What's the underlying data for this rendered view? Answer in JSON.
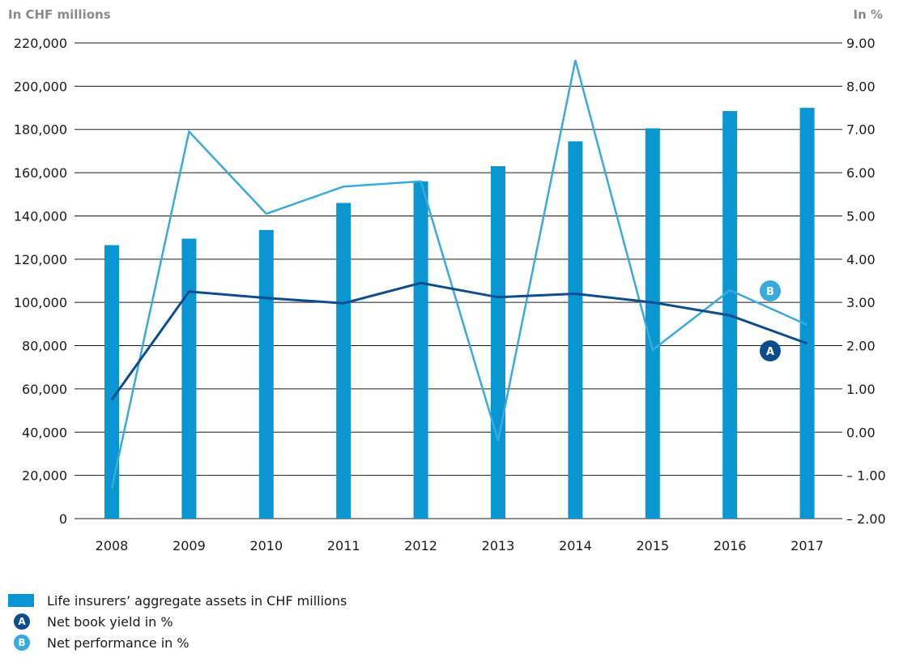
{
  "chart_data": {
    "type": "bar",
    "left_axis_unit": "In CHF millions",
    "right_axis_unit": "In %",
    "categories": [
      "2008",
      "2009",
      "2010",
      "2011",
      "2012",
      "2013",
      "2014",
      "2015",
      "2016",
      "2017"
    ],
    "left_ylim": [
      0,
      220000
    ],
    "left_ticks": [
      "220,000",
      "200,000",
      "180,000",
      "160,000",
      "140,000",
      "120,000",
      "100,000",
      "80,000",
      "60,000",
      "40,000",
      "20,000",
      "0"
    ],
    "right_ylim": [
      -2,
      9
    ],
    "right_ticks": [
      "9.00",
      "8.00",
      "7.00",
      "6.00",
      "5.00",
      "4.00",
      "3.00",
      "2.00",
      "1.00",
      "0.00",
      "– 1.00",
      "– 2.00"
    ],
    "grid": true,
    "series": [
      {
        "name": "Life insurers’ aggregate assets in CHF millions",
        "kind": "bar",
        "axis": "left",
        "color": "#0a96d2",
        "values": [
          126500,
          129500,
          133500,
          146000,
          156000,
          163000,
          174500,
          180500,
          188500,
          190000
        ]
      },
      {
        "name": "Net book yield in %",
        "kind": "line",
        "axis": "right",
        "color": "#0d4d8e",
        "marker": "A",
        "values": [
          0.75,
          3.25,
          3.1,
          2.98,
          3.45,
          3.12,
          3.2,
          3.0,
          2.7,
          2.05
        ]
      },
      {
        "name": "Net performance in %",
        "kind": "line",
        "axis": "right",
        "color": "#38aadd",
        "marker": "B",
        "values": [
          -1.3,
          6.95,
          5.05,
          5.68,
          5.8,
          -0.2,
          8.6,
          1.9,
          3.28,
          2.48
        ]
      }
    ],
    "legend_position": "bottom-left"
  },
  "legend": {
    "bar_label": "Life insurers’ aggregate assets in CHF millions",
    "marker_a": "A",
    "line_a_label": "Net book yield in %",
    "marker_b": "B",
    "line_b_label": "Net performance in %"
  }
}
